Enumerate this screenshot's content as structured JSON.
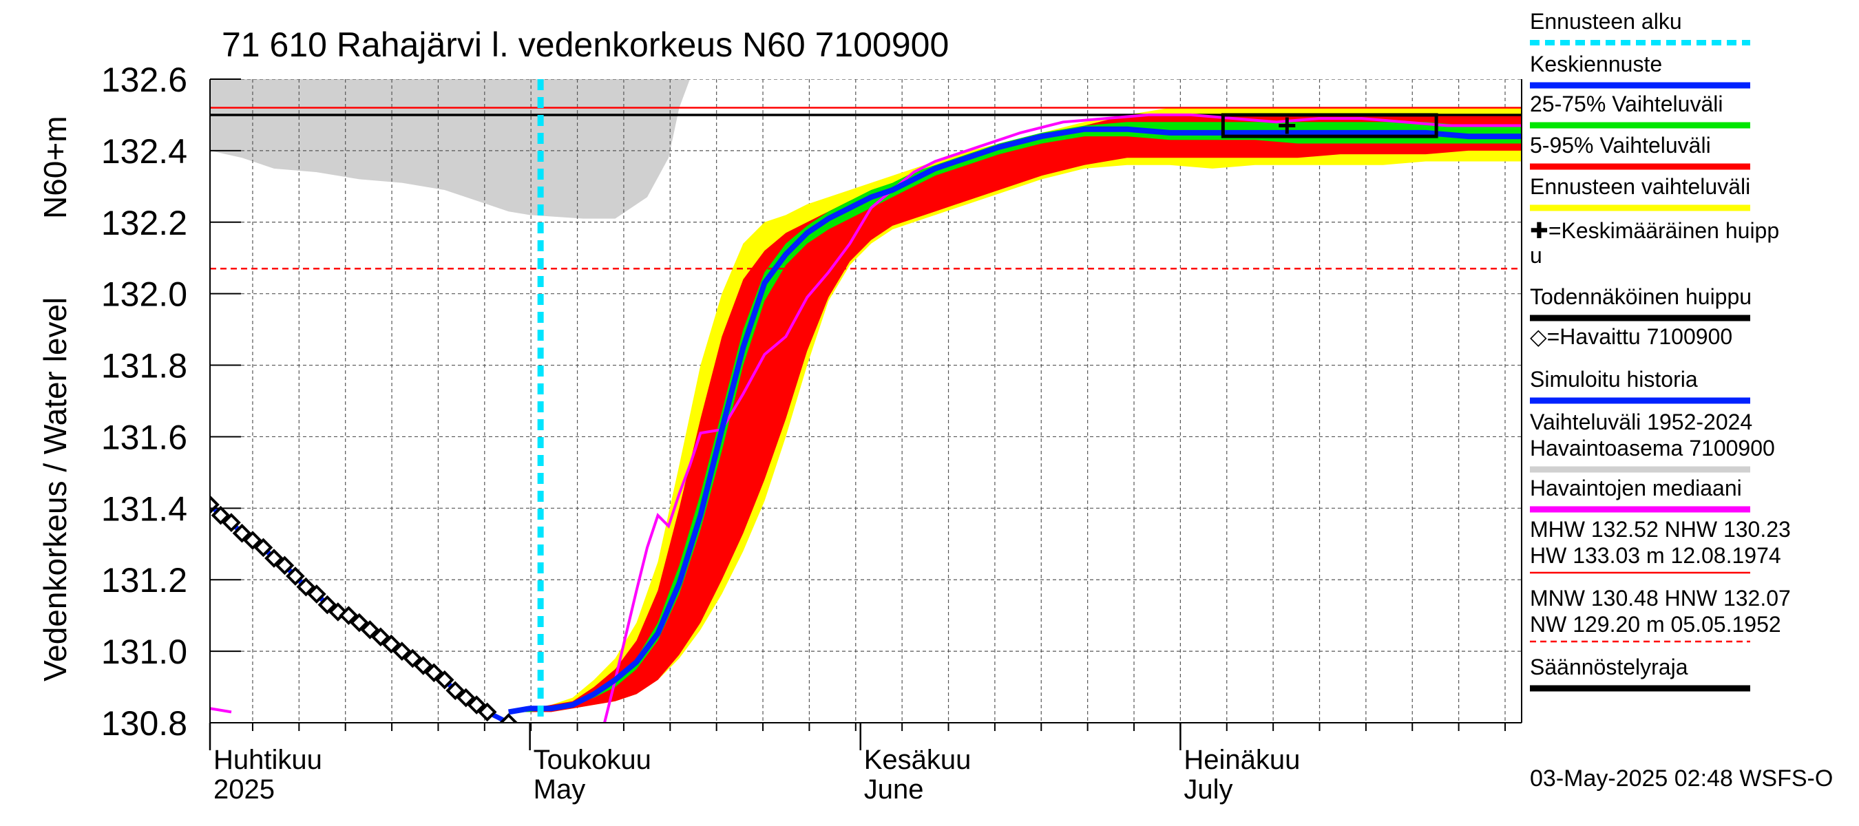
{
  "chart_data": {
    "type": "area",
    "title": "71 610 Rahajärvi l. vedenkorkeus N60 7100900",
    "ylabel_top": "N60+m",
    "ylabel_bottom": "Vedenkorkeus / Water level",
    "ylim": [
      130.8,
      132.6
    ],
    "yticks": [
      130.8,
      131.0,
      131.2,
      131.4,
      131.6,
      131.8,
      132.0,
      132.2,
      132.4,
      132.6
    ],
    "xlim_days": [
      0,
      123
    ],
    "months": [
      {
        "day": 0,
        "label": "Huhtikuu",
        "sub": "2025"
      },
      {
        "day": 30,
        "label": "Toukokuu",
        "sub": "May"
      },
      {
        "day": 61,
        "label": "Kesäkuu",
        "sub": "June"
      },
      {
        "day": 91,
        "label": "Heinäkuu",
        "sub": "July"
      }
    ],
    "forecast_start_day": 31,
    "lines": {
      "mhw": 132.52,
      "hnw": 132.07,
      "probable_peak": 132.5
    },
    "history_range": {
      "upper": [
        [
          0,
          132.6
        ],
        [
          28,
          132.6
        ],
        [
          31,
          132.6
        ],
        [
          42,
          132.6
        ],
        [
          44,
          132.6
        ],
        [
          123,
          132.6
        ]
      ],
      "lower": [
        [
          0,
          132.4
        ],
        [
          3,
          132.38
        ],
        [
          6,
          132.35
        ],
        [
          10,
          132.34
        ],
        [
          14,
          132.32
        ],
        [
          18,
          132.31
        ],
        [
          22,
          132.29
        ],
        [
          26,
          132.25
        ],
        [
          28,
          132.23
        ],
        [
          30,
          132.22
        ],
        [
          35,
          132.21
        ],
        [
          38,
          132.21
        ],
        [
          41,
          132.27
        ],
        [
          43,
          132.38
        ],
        [
          44,
          132.52
        ],
        [
          45,
          132.6
        ],
        [
          123,
          132.6
        ]
      ]
    },
    "observed": [
      [
        0,
        131.41
      ],
      [
        1,
        131.38
      ],
      [
        2,
        131.36
      ],
      [
        3,
        131.33
      ],
      [
        4,
        131.31
      ],
      [
        5,
        131.29
      ],
      [
        6,
        131.26
      ],
      [
        7,
        131.24
      ],
      [
        8,
        131.21
      ],
      [
        9,
        131.18
      ],
      [
        10,
        131.16
      ],
      [
        11,
        131.13
      ],
      [
        12,
        131.11
      ],
      [
        13,
        131.1
      ],
      [
        14,
        131.08
      ],
      [
        15,
        131.06
      ],
      [
        16,
        131.04
      ],
      [
        17,
        131.02
      ],
      [
        18,
        131.0
      ],
      [
        19,
        130.98
      ],
      [
        20,
        130.96
      ],
      [
        21,
        130.94
      ],
      [
        22,
        130.92
      ],
      [
        23,
        130.89
      ],
      [
        24,
        130.87
      ],
      [
        25,
        130.85
      ],
      [
        26,
        130.83
      ],
      [
        28,
        130.8
      ]
    ],
    "band_5_95_dummy": null,
    "forecast_days": [
      28,
      30,
      32,
      34,
      36,
      38,
      40,
      42,
      44,
      46,
      48,
      50,
      52,
      54,
      56,
      58,
      60,
      62,
      64,
      66,
      68,
      70,
      74,
      78,
      82,
      86,
      90,
      94,
      98,
      102,
      106,
      110,
      114,
      118,
      123
    ],
    "yellow_upper": [
      130.83,
      130.84,
      130.85,
      130.87,
      130.92,
      130.98,
      131.08,
      131.25,
      131.52,
      131.8,
      132.0,
      132.14,
      132.2,
      132.22,
      132.25,
      132.27,
      132.29,
      132.31,
      132.33,
      132.35,
      132.37,
      132.39,
      132.42,
      132.45,
      132.48,
      132.5,
      132.52,
      132.52,
      132.52,
      132.52,
      132.52,
      132.52,
      132.52,
      132.52,
      132.52
    ],
    "yellow_lower": [
      130.83,
      130.83,
      130.83,
      130.84,
      130.85,
      130.86,
      130.88,
      130.92,
      130.98,
      131.06,
      131.16,
      131.28,
      131.42,
      131.6,
      131.8,
      131.98,
      132.08,
      132.14,
      132.18,
      132.2,
      132.22,
      132.24,
      132.28,
      132.32,
      132.35,
      132.36,
      132.36,
      132.35,
      132.36,
      132.36,
      132.36,
      132.36,
      132.37,
      132.37,
      132.37
    ],
    "red_upper": [
      130.83,
      130.84,
      130.85,
      130.86,
      130.9,
      130.95,
      131.03,
      131.17,
      131.4,
      131.65,
      131.88,
      132.04,
      132.12,
      132.17,
      132.2,
      132.23,
      132.26,
      132.28,
      132.3,
      132.33,
      132.35,
      132.37,
      132.41,
      132.44,
      132.47,
      132.5,
      132.5,
      132.5,
      132.5,
      132.5,
      132.5,
      132.5,
      132.5,
      132.5,
      132.5
    ],
    "red_lower": [
      130.83,
      130.83,
      130.83,
      130.84,
      130.85,
      130.86,
      130.88,
      130.92,
      130.99,
      131.08,
      131.2,
      131.33,
      131.48,
      131.65,
      131.84,
      131.99,
      132.09,
      132.15,
      132.19,
      132.21,
      132.23,
      132.25,
      132.29,
      132.33,
      132.36,
      132.38,
      132.38,
      132.38,
      132.38,
      132.38,
      132.39,
      132.39,
      132.39,
      132.4,
      132.4
    ],
    "green_upper": [
      130.83,
      130.84,
      130.84,
      130.85,
      130.88,
      130.92,
      130.98,
      131.08,
      131.24,
      131.44,
      131.67,
      131.9,
      132.06,
      132.14,
      132.19,
      132.23,
      132.26,
      132.29,
      132.31,
      132.34,
      132.36,
      132.38,
      132.42,
      132.45,
      132.47,
      132.48,
      132.48,
      132.48,
      132.48,
      132.48,
      132.48,
      132.48,
      132.48,
      132.47,
      132.47
    ],
    "green_lower": [
      130.83,
      130.83,
      130.84,
      130.85,
      130.87,
      130.9,
      130.95,
      131.03,
      131.16,
      131.34,
      131.56,
      131.8,
      131.98,
      132.08,
      132.14,
      132.18,
      132.21,
      132.24,
      132.27,
      132.3,
      132.33,
      132.35,
      132.39,
      132.42,
      132.44,
      132.44,
      132.43,
      132.43,
      132.43,
      132.42,
      132.42,
      132.42,
      132.42,
      132.42,
      132.42
    ],
    "mean_forecast": [
      130.83,
      130.84,
      130.84,
      130.85,
      130.88,
      130.92,
      130.97,
      131.05,
      131.19,
      131.38,
      131.62,
      131.85,
      132.03,
      132.11,
      132.17,
      132.21,
      132.24,
      132.27,
      132.29,
      132.32,
      132.35,
      132.37,
      132.41,
      132.44,
      132.46,
      132.46,
      132.45,
      132.45,
      132.45,
      132.45,
      132.45,
      132.45,
      132.45,
      132.44,
      132.44
    ],
    "median_observed": [
      [
        0,
        130.84
      ],
      [
        2,
        130.83
      ],
      [
        3,
        130.8
      ],
      [
        37,
        130.8
      ],
      [
        38,
        130.92
      ],
      [
        40,
        131.17
      ],
      [
        41,
        131.29
      ],
      [
        42,
        131.38
      ],
      [
        43,
        131.35
      ],
      [
        44,
        131.44
      ],
      [
        45,
        131.52
      ],
      [
        46,
        131.61
      ],
      [
        48,
        131.62
      ],
      [
        50,
        131.72
      ],
      [
        52,
        131.83
      ],
      [
        54,
        131.88
      ],
      [
        56,
        131.99
      ],
      [
        58,
        132.06
      ],
      [
        60,
        132.14
      ],
      [
        62,
        132.24
      ],
      [
        64,
        132.29
      ],
      [
        66,
        132.34
      ],
      [
        68,
        132.37
      ],
      [
        72,
        132.41
      ],
      [
        76,
        132.45
      ],
      [
        80,
        132.48
      ],
      [
        84,
        132.49
      ],
      [
        88,
        132.5
      ],
      [
        92,
        132.5
      ],
      [
        96,
        132.49
      ],
      [
        100,
        132.48
      ],
      [
        104,
        132.49
      ],
      [
        108,
        132.49
      ],
      [
        112,
        132.48
      ],
      [
        116,
        132.47
      ],
      [
        120,
        132.47
      ],
      [
        123,
        132.47
      ]
    ],
    "peak_box": {
      "day_start": 95,
      "day_end": 115,
      "ymin": 132.44,
      "ymax": 132.5
    },
    "mean_peak": {
      "day": 101,
      "value": 132.47
    }
  },
  "legend": [
    {
      "label": "Ennusteen alku",
      "color": "#00e5ff",
      "style": "dashed"
    },
    {
      "label": "Keskiennuste",
      "color": "#0022ff",
      "style": "solid"
    },
    {
      "label": "25-75% Vaihteluväli",
      "color": "#00e600",
      "style": "solid"
    },
    {
      "label": "5-95% Vaihteluväli",
      "color": "#ff0000",
      "style": "solid"
    },
    {
      "label": "Ennusteen vaihteluväli",
      "color": "#ffff00",
      "style": "solid"
    },
    {
      "label": "✚=Keskimääräinen huipp",
      "color": "#000000",
      "style": "none"
    },
    {
      "label": "u",
      "color": "#000000",
      "style": "none"
    },
    {
      "label": "Todennäköinen huippu",
      "color": "#000000",
      "style": "solid"
    },
    {
      "label": "◇=Havaittu 7100900",
      "color": "#000000",
      "style": "none"
    },
    {
      "label": "Simuloitu historia",
      "color": "#0022ff",
      "style": "solid"
    },
    {
      "label": "Vaihteluväli 1952-2024",
      "color": "#000000",
      "style": "none"
    },
    {
      "label": " Havaintoasema 7100900",
      "color": "#d0d0d0",
      "style": "solid"
    },
    {
      "label": "Havaintojen mediaani",
      "color": "#ff00ff",
      "style": "solid"
    },
    {
      "label": "MHW 132.52 NHW 130.23",
      "color": "#000000",
      "style": "none"
    },
    {
      "label": "HW 133.03 m 12.08.1974",
      "color": "#ff0000",
      "style": "solid-thin"
    },
    {
      "label": "MNW 130.48 HNW 132.07",
      "color": "#000000",
      "style": "none"
    },
    {
      "label": "NW 129.20 m 05.05.1952",
      "color": "#ff0000",
      "style": "dashed-thin"
    },
    {
      "label": "Säännöstelyraja",
      "color": "#000000",
      "style": "solid"
    }
  ],
  "footer": "03-May-2025 02:48 WSFS-O",
  "colors": {
    "history": "#d0d0d0",
    "yellow": "#ffff00",
    "red": "#ff0000",
    "green": "#00e600",
    "mean": "#0022ff",
    "median": "#ff00ff",
    "forecast_start": "#00e5ff"
  }
}
